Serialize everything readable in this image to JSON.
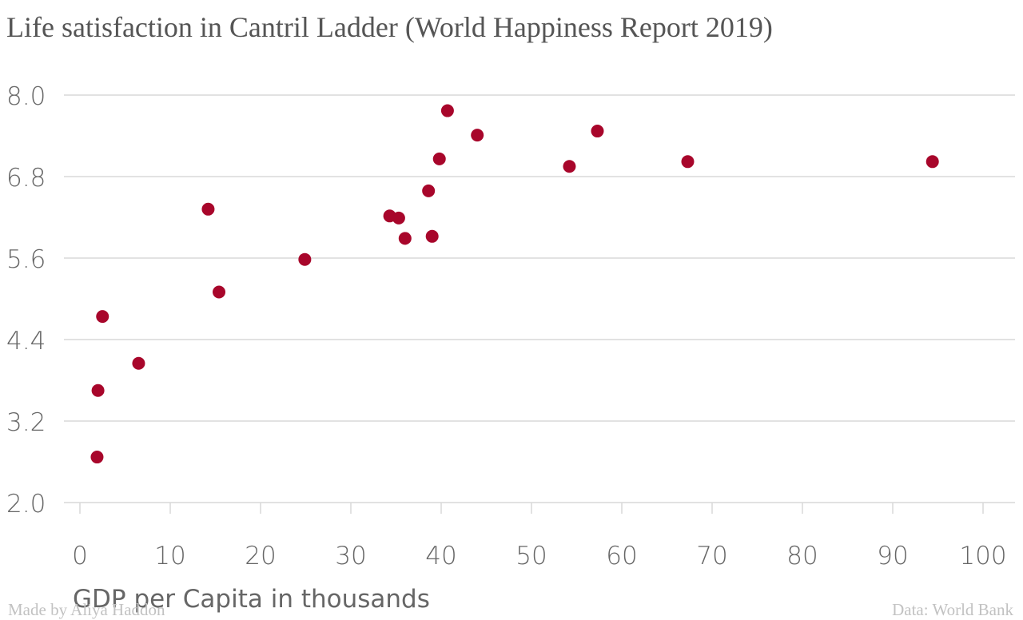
{
  "footer": {
    "credit": "Made by Aliya Haddon",
    "source": "Data: World Bank"
  },
  "colors": {
    "point": "#a8062b",
    "grid": "#d9d9d9",
    "text": "#666666"
  },
  "chart_data": {
    "type": "scatter",
    "title": "Life satisfaction in Cantril Ladder (World Happiness Report 2019)",
    "xlabel": "GDP per Capita in thousands",
    "ylabel": "",
    "xlim": [
      0,
      100
    ],
    "ylim": [
      2.0,
      8.0
    ],
    "x_ticks": [
      "0",
      "10",
      "20",
      "30",
      "40",
      "50",
      "60",
      "70",
      "80",
      "90",
      "100"
    ],
    "y_ticks": [
      "8.0",
      "6.8",
      "5.6",
      "4.4",
      "3.2",
      "2.0"
    ],
    "grid": "horizontal",
    "points": [
      {
        "x": 1.9,
        "y": 2.67
      },
      {
        "x": 2.0,
        "y": 3.65
      },
      {
        "x": 2.5,
        "y": 4.74
      },
      {
        "x": 6.5,
        "y": 4.05
      },
      {
        "x": 14.2,
        "y": 6.32
      },
      {
        "x": 15.4,
        "y": 5.1
      },
      {
        "x": 24.9,
        "y": 5.58
      },
      {
        "x": 34.3,
        "y": 6.22
      },
      {
        "x": 35.3,
        "y": 6.19
      },
      {
        "x": 36.0,
        "y": 5.89
      },
      {
        "x": 38.6,
        "y": 6.59
      },
      {
        "x": 39.0,
        "y": 5.92
      },
      {
        "x": 39.8,
        "y": 7.06
      },
      {
        "x": 40.7,
        "y": 7.77
      },
      {
        "x": 44.0,
        "y": 7.41
      },
      {
        "x": 54.2,
        "y": 6.95
      },
      {
        "x": 57.3,
        "y": 7.47
      },
      {
        "x": 67.3,
        "y": 7.02
      },
      {
        "x": 94.4,
        "y": 7.02
      }
    ]
  }
}
